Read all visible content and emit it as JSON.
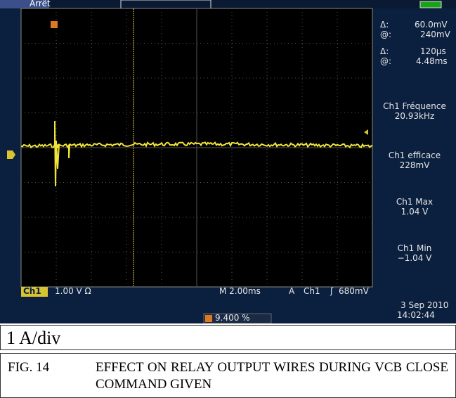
{
  "scope": {
    "status": "Arrêt",
    "cursors": [
      {
        "delta_label": "Δ:",
        "delta": "60.0mV",
        "at_label": "@:",
        "at": "240mV"
      },
      {
        "delta_label": "Δ:",
        "delta": "120µs",
        "at_label": "@:",
        "at": "4.48ms"
      }
    ],
    "measurements": [
      {
        "label": "Ch1 Fréquence",
        "value": "20.93kHz"
      },
      {
        "label": "Ch1 efficace",
        "value": "228mV"
      },
      {
        "label": "Ch1 Max",
        "value": "1.04 V"
      },
      {
        "label": "Ch1 Min",
        "value": "−1.04 V"
      }
    ],
    "channel": "Ch1",
    "scale": "1.00 V Ω",
    "timebase": "M 2.00ms",
    "trigger_mode": "A",
    "trigger_channel": "Ch1",
    "trigger_level": "680mV",
    "trigger_position": "9.400 %",
    "date": "3 Sep 2010",
    "time": "14:02:44"
  },
  "note": "1 A/div",
  "caption": {
    "number": "FIG. 14",
    "text": "EFFECT ON RELAY OUTPUT WIRES DURING VCB CLOSE COMMAND GIVEN"
  }
}
